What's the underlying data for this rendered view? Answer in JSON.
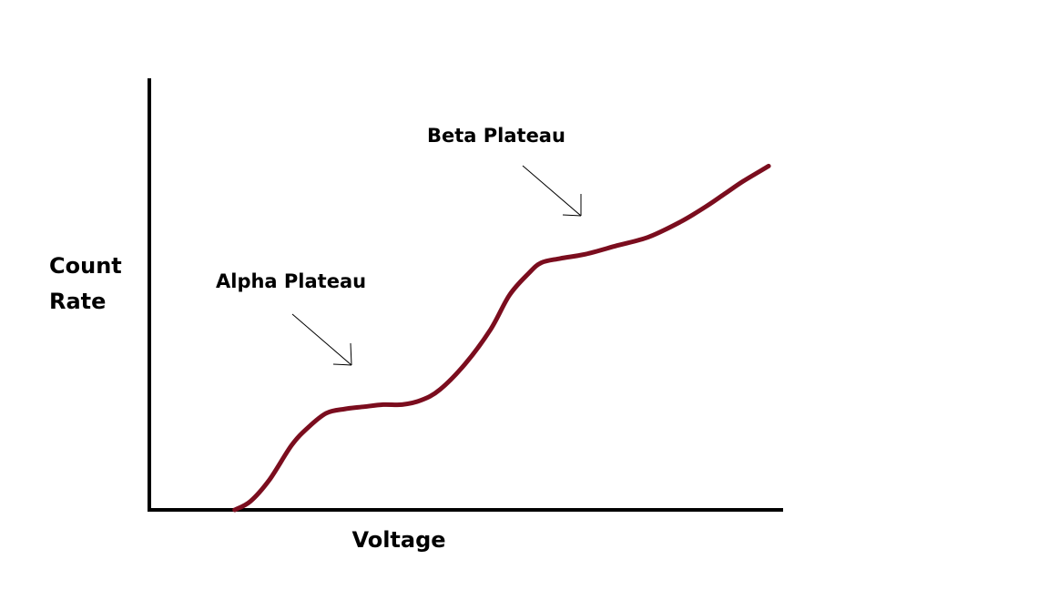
{
  "chart_data": {
    "type": "line",
    "title": "",
    "xlabel": "Voltage",
    "ylabel_lines": [
      "Count",
      "Rate"
    ],
    "xlim": [
      0,
      100
    ],
    "ylim": [
      0,
      100
    ],
    "grid": false,
    "legend": "none",
    "x_ticks_shown": false,
    "y_ticks_shown": false,
    "series": [
      {
        "color": "#7b0d1e",
        "x": [
          13.5,
          16,
          19,
          22.5,
          25,
          28,
          31,
          34,
          37,
          40,
          43,
          46,
          50,
          54,
          57,
          60,
          62,
          65,
          69,
          74,
          79,
          84,
          88,
          91,
          94,
          98
        ],
        "y": [
          0,
          2,
          7,
          15,
          19,
          22.5,
          23.5,
          24,
          24.5,
          24.5,
          25.5,
          28,
          34,
          42,
          50,
          55,
          57.5,
          58.5,
          59.5,
          61.5,
          63.5,
          67,
          70.5,
          73.5,
          76.5,
          80
        ]
      }
    ],
    "annotations": [
      {
        "text": "Alpha Plateau",
        "points_to": {
          "x": 32,
          "y": 34
        }
      },
      {
        "text": "Beta Plateau",
        "points_to": {
          "x": 68,
          "y": 68
        }
      }
    ]
  }
}
